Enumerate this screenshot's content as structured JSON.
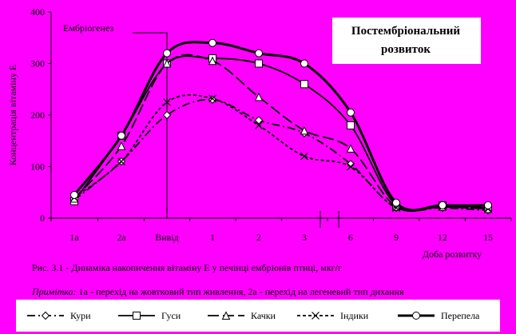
{
  "chart_data": {
    "type": "line",
    "ylabel": "Концентрація вітаміну Е",
    "xlabel": "Доба розвитку",
    "ylim": [
      0,
      400
    ],
    "yticks": [
      0,
      100,
      200,
      300,
      400
    ],
    "categories": [
      "1а",
      "2а",
      "Вивід",
      "1",
      "2",
      "3",
      "6",
      "9",
      "12",
      "15"
    ],
    "annotations": {
      "embryo": "Ембріогенез",
      "post_line1": "Постембріональний",
      "post_line2": "розвиток"
    },
    "series": [
      {
        "name": "Кури",
        "color": "#000000",
        "marker": "diamond",
        "dash": "10,4,2,4",
        "values": [
          35,
          110,
          200,
          230,
          190,
          165,
          105,
          20,
          20,
          15
        ]
      },
      {
        "name": "Гуси",
        "color": "#000000",
        "marker": "square",
        "dash": "none",
        "values": [
          33,
          160,
          300,
          310,
          300,
          260,
          180,
          25,
          25,
          20
        ]
      },
      {
        "name": "Качки",
        "color": "#000000",
        "marker": "triangle",
        "dash": "14,5",
        "values": [
          38,
          140,
          300,
          305,
          235,
          170,
          135,
          22,
          22,
          18
        ]
      },
      {
        "name": "Індики",
        "color": "#000000",
        "marker": "cross",
        "dash": "4,3",
        "values": [
          40,
          110,
          225,
          232,
          180,
          120,
          100,
          20,
          22,
          18
        ]
      },
      {
        "name": "Перепела",
        "color": "#000000",
        "marker": "circle",
        "dash": "none",
        "bold": true,
        "values": [
          45,
          160,
          320,
          340,
          320,
          300,
          205,
          30,
          25,
          25
        ]
      }
    ],
    "legend_position": "bottom"
  },
  "caption": "Рис. 3.1 - Динаміка накопичення вітаміну Е у печінці ембріонів птиці,   мкг/г",
  "note_label": "Примітка:",
  "note_text": " 1а - перехід на жовтковий тип живлення, 2а - перехід на легеневий тип дихання"
}
